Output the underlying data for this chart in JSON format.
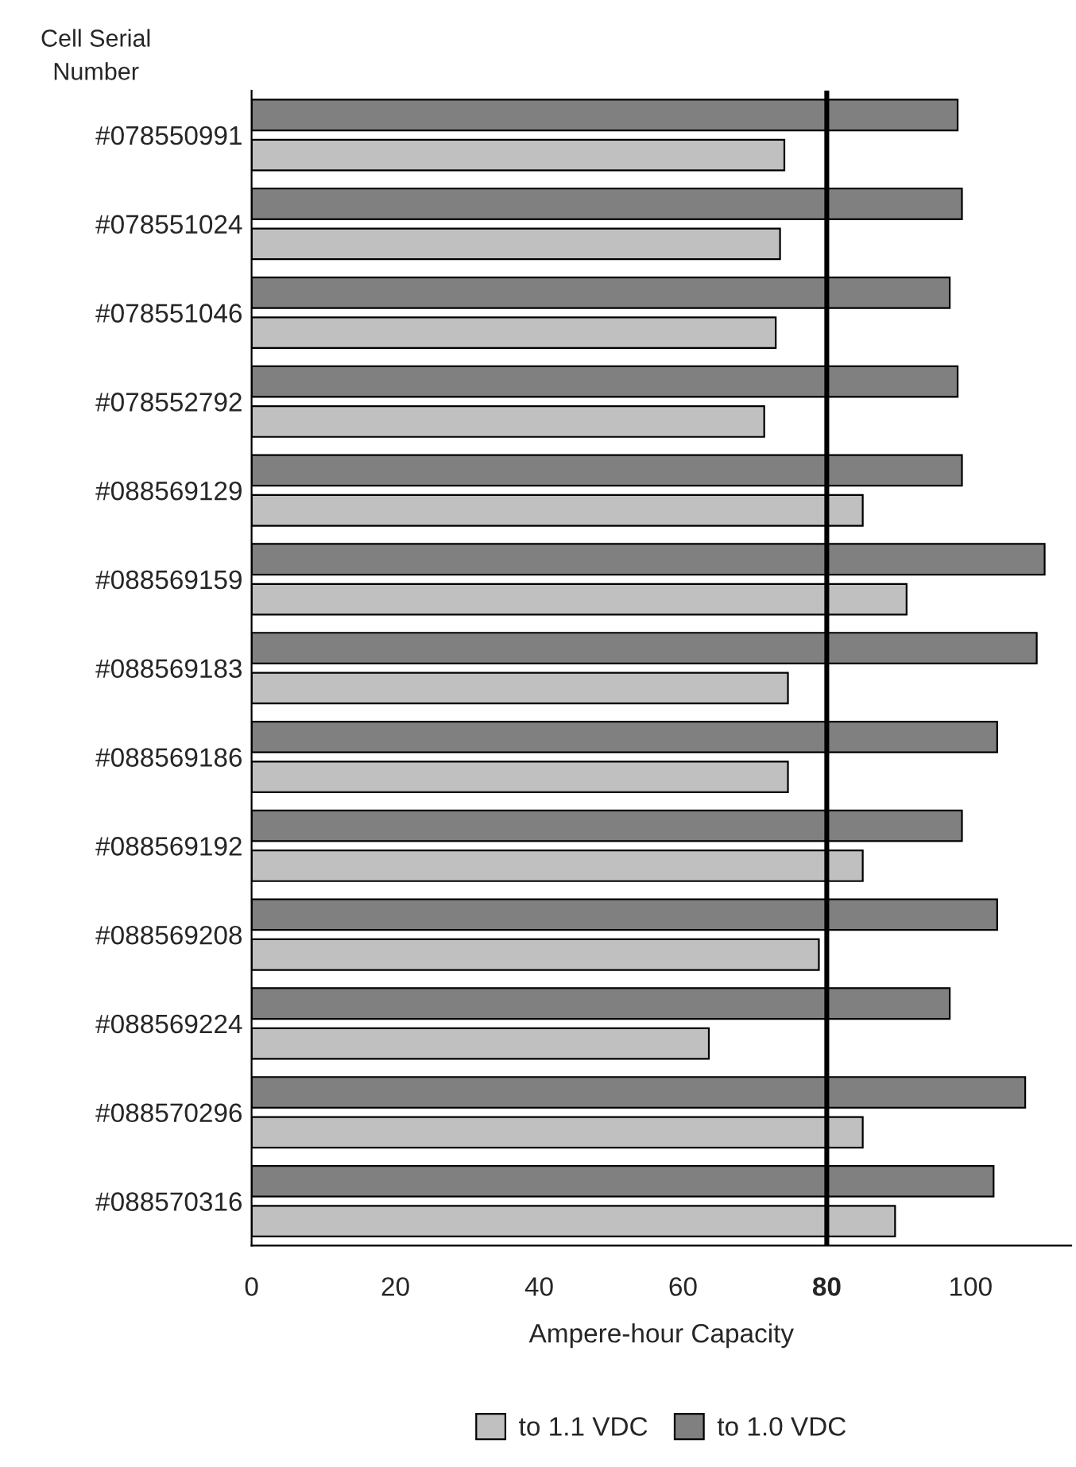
{
  "chart_data": {
    "type": "bar",
    "orientation": "horizontal",
    "ylabel": "Cell Serial Number",
    "xlabel": "Ampere-hour Capacity",
    "categories": [
      "#078550991",
      "#078551024",
      "#078551046",
      "#078552792",
      "#088569129",
      "#088569159",
      "#088569183",
      "#088569186",
      "#088569192",
      "#088569208",
      "#088569224",
      "#088570296",
      "#088570316"
    ],
    "series": [
      {
        "name": "to 1.1 VDC",
        "color": "#c0c0c0",
        "values": [
          74.1,
          73.5,
          72.9,
          71.3,
          85.0,
          91.1,
          74.6,
          74.6,
          85.0,
          78.9,
          63.6,
          85.0,
          89.5
        ]
      },
      {
        "name": "to 1.0 VDC",
        "color": "#808080",
        "values": [
          98.2,
          98.8,
          97.1,
          98.2,
          98.8,
          110.3,
          109.2,
          103.7,
          98.8,
          103.7,
          97.1,
          107.6,
          103.2
        ]
      }
    ],
    "xlim": [
      0,
      114
    ],
    "xticks": [
      0,
      20,
      40,
      60,
      80,
      100
    ],
    "ref_lines": [
      {
        "axis": "x",
        "value": 80,
        "color": "#000000",
        "line_style": "solid"
      }
    ],
    "grid": false,
    "legend": "bottom"
  }
}
